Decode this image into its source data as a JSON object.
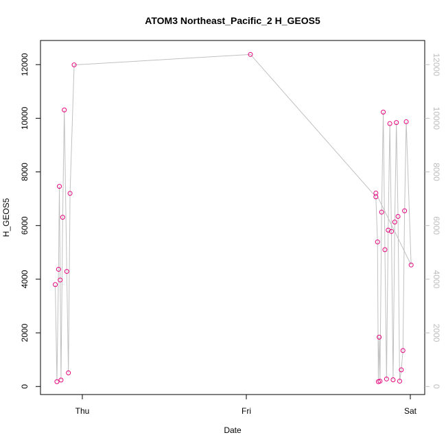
{
  "chart_data": {
    "type": "line",
    "title": "ATOM3 Northeast_Pacific_2 H_GEOS5",
    "xlabel": "Date",
    "ylabel": "H_GEOS5",
    "x_axis": {
      "type": "time",
      "unit": "day",
      "ticks": [
        {
          "value": 0,
          "label": "Thu"
        },
        {
          "value": 1,
          "label": "Fri"
        },
        {
          "value": 2,
          "label": "Sat"
        }
      ]
    },
    "y_axis": {
      "ticks": [
        0,
        2000,
        4000,
        6000,
        8000,
        10000,
        12000
      ],
      "ylim": [
        -300,
        12900
      ]
    },
    "right_axis": {
      "ticks": [
        0,
        2000,
        4000,
        6000,
        8000,
        10000,
        12000
      ],
      "color": "#bdbdbd"
    },
    "colors": {
      "line": "#c0c0c0",
      "points": "#e6007e",
      "frame": "#000000"
    },
    "series": [
      {
        "name": "",
        "x": [
          -0.165,
          -0.155,
          -0.145,
          -0.14,
          -0.135,
          -0.13,
          -0.12,
          -0.11,
          -0.095,
          -0.085,
          -0.075,
          -0.05,
          1.025,
          1.79,
          1.8,
          1.805,
          1.81,
          1.815,
          1.825,
          1.835,
          1.845,
          1.855,
          1.865,
          1.875,
          1.885,
          1.895,
          1.905,
          1.915,
          1.925,
          1.935,
          1.945,
          1.955,
          1.965,
          1.975,
          2.005,
          1.79
        ],
        "y": [
          3800,
          180,
          4370,
          7460,
          3970,
          240,
          6310,
          10310,
          4290,
          510,
          7200,
          11990,
          12380,
          7070,
          5390,
          180,
          1840,
          200,
          6500,
          10230,
          5100,
          280,
          5830,
          9800,
          5780,
          250,
          6130,
          9840,
          6340,
          200,
          620,
          1340,
          6550,
          9870,
          4530,
          7210
        ]
      }
    ]
  }
}
